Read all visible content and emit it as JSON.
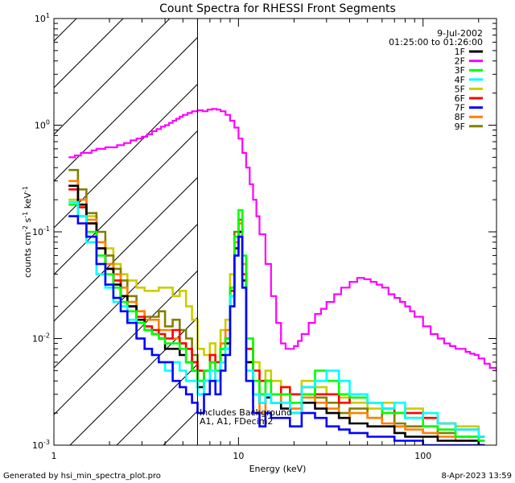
{
  "chart_data": {
    "type": "line",
    "title": "Count Spectra for RHESSI Front Segments",
    "xlabel": "Energy (keV)",
    "ylabel_parts": {
      "a": "counts cm",
      "b": "-2",
      "c": " s",
      "d": "-1",
      "e": " keV",
      "f": "-1"
    },
    "xscale": "log",
    "yscale": "log",
    "xlim": [
      1,
      250
    ],
    "ylim": [
      0.001,
      10
    ],
    "x_ticks": [
      {
        "v": 1,
        "label": "1"
      },
      {
        "v": 10,
        "label": "10"
      },
      {
        "v": 100,
        "label": "100"
      }
    ],
    "y_ticks": [
      {
        "v": 0.001,
        "b": "10",
        "e": "-3"
      },
      {
        "v": 0.01,
        "b": "10",
        "e": "-2"
      },
      {
        "v": 0.1,
        "b": "10",
        "e": "-1"
      },
      {
        "v": 1,
        "b": "10",
        "e": "0"
      },
      {
        "v": 10,
        "b": "10",
        "e": "1"
      }
    ],
    "attenuator_edge_keV": 6,
    "date": "9-Jul-2002",
    "time_range": "01:25:00 to 01:26:00",
    "annotation_line1": "Includes Background",
    "annotation_line2": "A1, A1, FDecim2",
    "legend": [
      {
        "name": "1F",
        "color": "#000000"
      },
      {
        "name": "2F",
        "color": "#ff00ff"
      },
      {
        "name": "3F",
        "color": "#00ff00"
      },
      {
        "name": "4F",
        "color": "#00ffff"
      },
      {
        "name": "5F",
        "color": "#cccc00"
      },
      {
        "name": "6F",
        "color": "#ff0000"
      },
      {
        "name": "7F",
        "color": "#0000ff"
      },
      {
        "name": "8F",
        "color": "#ff8000"
      },
      {
        "name": "9F",
        "color": "#808000"
      }
    ],
    "series": [
      {
        "name": "2F",
        "color": "#ff00ff",
        "x": [
          1.2,
          1.3,
          1.4,
          1.5,
          1.6,
          1.7,
          1.8,
          1.9,
          2.0,
          2.2,
          2.4,
          2.6,
          2.8,
          3.0,
          3.2,
          3.4,
          3.6,
          3.8,
          4.0,
          4.2,
          4.4,
          4.6,
          4.8,
          5.0,
          5.3,
          5.6,
          6.0,
          6.4,
          6.8,
          7.2,
          7.6,
          8.0,
          8.5,
          9.0,
          9.5,
          10,
          10.5,
          11,
          11.5,
          12,
          12.5,
          13,
          14,
          15,
          16,
          17,
          18,
          19,
          20,
          21,
          22,
          24,
          26,
          28,
          30,
          33,
          36,
          40,
          44,
          48,
          52,
          56,
          60,
          65,
          70,
          75,
          80,
          85,
          90,
          100,
          110,
          120,
          130,
          140,
          150,
          160,
          170,
          180,
          190,
          200,
          215,
          230,
          250
        ],
        "y": [
          0.5,
          0.52,
          0.55,
          0.55,
          0.58,
          0.6,
          0.6,
          0.62,
          0.62,
          0.65,
          0.68,
          0.72,
          0.75,
          0.78,
          0.82,
          0.88,
          0.92,
          0.97,
          1.0,
          1.05,
          1.1,
          1.15,
          1.2,
          1.25,
          1.3,
          1.35,
          1.38,
          1.35,
          1.4,
          1.42,
          1.4,
          1.35,
          1.25,
          1.1,
          0.95,
          0.75,
          0.55,
          0.4,
          0.28,
          0.2,
          0.14,
          0.095,
          0.05,
          0.025,
          0.014,
          0.009,
          0.008,
          0.008,
          0.0085,
          0.0095,
          0.011,
          0.014,
          0.017,
          0.019,
          0.022,
          0.026,
          0.03,
          0.034,
          0.037,
          0.036,
          0.034,
          0.032,
          0.03,
          0.026,
          0.024,
          0.022,
          0.02,
          0.018,
          0.016,
          0.013,
          0.011,
          0.01,
          0.009,
          0.0085,
          0.008,
          0.008,
          0.0075,
          0.0072,
          0.007,
          0.0065,
          0.0058,
          0.0053,
          0.005
        ]
      },
      {
        "name": "5F",
        "color": "#cccc00",
        "x": [
          1.2,
          1.35,
          1.5,
          1.7,
          1.9,
          2.1,
          2.3,
          2.5,
          2.8,
          3.1,
          3.4,
          3.7,
          4.0,
          4.4,
          4.8,
          5.2,
          5.6,
          6.0,
          6.5,
          7.0,
          7.5,
          8.0,
          8.5,
          9.0,
          9.5,
          10,
          10.5,
          11,
          12,
          13,
          14,
          15,
          17,
          19,
          22,
          26,
          30,
          35,
          40,
          50,
          60,
          70,
          80,
          100,
          120,
          150,
          200
        ],
        "y": [
          0.2,
          0.17,
          0.14,
          0.08,
          0.07,
          0.05,
          0.04,
          0.035,
          0.03,
          0.028,
          0.028,
          0.03,
          0.03,
          0.025,
          0.028,
          0.02,
          0.015,
          0.008,
          0.007,
          0.009,
          0.006,
          0.012,
          0.015,
          0.04,
          0.09,
          0.12,
          0.05,
          0.01,
          0.006,
          0.004,
          0.005,
          0.004,
          0.0035,
          0.003,
          0.004,
          0.0035,
          0.003,
          0.0028,
          0.0025,
          0.0022,
          0.0025,
          0.002,
          0.0022,
          0.0018,
          0.0016,
          0.0015,
          0.0012
        ]
      },
      {
        "name": "9F",
        "color": "#808000",
        "x": [
          1.2,
          1.35,
          1.5,
          1.7,
          1.9,
          2.1,
          2.3,
          2.5,
          2.8,
          3.1,
          3.4,
          3.7,
          4.0,
          4.4,
          4.8,
          5.2,
          5.6,
          6.0,
          6.5,
          7.0,
          7.5,
          8.0,
          8.5,
          9.0,
          9.5,
          10,
          10.5,
          11,
          12,
          13,
          14,
          15,
          17,
          19,
          22,
          26,
          30,
          35,
          40,
          50,
          60,
          70,
          80,
          100,
          120,
          150,
          200
        ],
        "y": [
          0.38,
          0.25,
          0.15,
          0.1,
          0.06,
          0.045,
          0.035,
          0.025,
          0.018,
          0.016,
          0.016,
          0.018,
          0.013,
          0.015,
          0.012,
          0.01,
          0.007,
          0.004,
          0.005,
          0.006,
          0.004,
          0.008,
          0.01,
          0.03,
          0.1,
          0.13,
          0.04,
          0.008,
          0.004,
          0.003,
          0.004,
          0.003,
          0.003,
          0.0025,
          0.003,
          0.0028,
          0.0025,
          0.002,
          0.0022,
          0.0018,
          0.002,
          0.0016,
          0.0015,
          0.0015,
          0.0013,
          0.0012,
          0.0011
        ]
      },
      {
        "name": "8F",
        "color": "#ff8000",
        "x": [
          1.2,
          1.35,
          1.5,
          1.7,
          1.9,
          2.1,
          2.3,
          2.5,
          2.8,
          3.1,
          3.4,
          3.7,
          4.0,
          4.4,
          4.8,
          5.2,
          5.6,
          6.0,
          6.5,
          7.0,
          7.5,
          8.0,
          8.5,
          9.0,
          9.5,
          10,
          10.5,
          11,
          12,
          13,
          14,
          15,
          17,
          19,
          22,
          26,
          30,
          35,
          40,
          50,
          60,
          70,
          80,
          100,
          120,
          150,
          200
        ],
        "y": [
          0.3,
          0.2,
          0.13,
          0.08,
          0.05,
          0.04,
          0.03,
          0.022,
          0.018,
          0.015,
          0.015,
          0.012,
          0.012,
          0.01,
          0.009,
          0.008,
          0.006,
          0.004,
          0.005,
          0.007,
          0.005,
          0.009,
          0.012,
          0.03,
          0.08,
          0.12,
          0.05,
          0.006,
          0.003,
          0.002,
          0.003,
          0.0025,
          0.003,
          0.0022,
          0.0028,
          0.0025,
          0.0022,
          0.0018,
          0.002,
          0.0018,
          0.0016,
          0.0015,
          0.0014,
          0.0013,
          0.0012,
          0.0011,
          0.001
        ]
      },
      {
        "name": "6F",
        "color": "#ff0000",
        "x": [
          1.2,
          1.35,
          1.5,
          1.7,
          1.9,
          2.1,
          2.3,
          2.5,
          2.8,
          3.1,
          3.4,
          3.7,
          4.0,
          4.4,
          4.8,
          5.2,
          5.6,
          6.0,
          6.5,
          7.0,
          7.5,
          8.0,
          8.5,
          9.0,
          9.5,
          10,
          10.5,
          11,
          12,
          13,
          14,
          15,
          17,
          19,
          22,
          26,
          30,
          35,
          40,
          50,
          60,
          70,
          80,
          100,
          120,
          150,
          200
        ],
        "y": [
          0.25,
          0.17,
          0.12,
          0.07,
          0.045,
          0.035,
          0.025,
          0.02,
          0.016,
          0.013,
          0.012,
          0.011,
          0.01,
          0.012,
          0.009,
          0.008,
          0.006,
          0.005,
          0.004,
          0.007,
          0.006,
          0.008,
          0.01,
          0.028,
          0.07,
          0.1,
          0.04,
          0.008,
          0.005,
          0.004,
          0.004,
          0.003,
          0.0035,
          0.003,
          0.0035,
          0.003,
          0.003,
          0.0025,
          0.0028,
          0.0025,
          0.0022,
          0.002,
          0.002,
          0.0018,
          0.0016,
          0.0014,
          0.0012
        ]
      },
      {
        "name": "1F",
        "color": "#000000",
        "x": [
          1.2,
          1.35,
          1.5,
          1.7,
          1.9,
          2.1,
          2.3,
          2.5,
          2.8,
          3.1,
          3.4,
          3.7,
          4.0,
          4.4,
          4.8,
          5.2,
          5.6,
          6.0,
          6.5,
          7.0,
          7.5,
          8.0,
          8.5,
          9.0,
          9.5,
          10,
          10.5,
          11,
          12,
          13,
          14,
          15,
          17,
          19,
          22,
          26,
          30,
          35,
          40,
          50,
          60,
          70,
          80,
          100,
          120,
          150,
          200
        ],
        "y": [
          0.27,
          0.18,
          0.12,
          0.07,
          0.045,
          0.032,
          0.025,
          0.02,
          0.015,
          0.012,
          0.011,
          0.01,
          0.008,
          0.008,
          0.007,
          0.006,
          0.005,
          0.0035,
          0.004,
          0.006,
          0.004,
          0.007,
          0.009,
          0.025,
          0.07,
          0.1,
          0.035,
          0.006,
          0.003,
          0.0025,
          0.0028,
          0.0025,
          0.0022,
          0.002,
          0.0025,
          0.0022,
          0.002,
          0.0018,
          0.0016,
          0.0015,
          0.0015,
          0.0013,
          0.0012,
          0.0012,
          0.0011,
          0.0011,
          0.001
        ]
      },
      {
        "name": "3F",
        "color": "#00ff00",
        "x": [
          1.2,
          1.35,
          1.5,
          1.7,
          1.9,
          2.1,
          2.3,
          2.5,
          2.8,
          3.1,
          3.4,
          3.7,
          4.0,
          4.4,
          4.8,
          5.2,
          5.6,
          6.0,
          6.5,
          7.0,
          7.5,
          8.0,
          8.5,
          9.0,
          9.5,
          10,
          10.5,
          11,
          12,
          13,
          14,
          15,
          17,
          19,
          22,
          26,
          30,
          35,
          40,
          50,
          60,
          70,
          80,
          100,
          120,
          150,
          200
        ],
        "y": [
          0.18,
          0.14,
          0.1,
          0.06,
          0.04,
          0.03,
          0.022,
          0.018,
          0.014,
          0.012,
          0.011,
          0.01,
          0.009,
          0.009,
          0.008,
          0.006,
          0.005,
          0.004,
          0.005,
          0.006,
          0.005,
          0.008,
          0.01,
          0.03,
          0.09,
          0.16,
          0.06,
          0.01,
          0.004,
          0.003,
          0.004,
          0.003,
          0.003,
          0.0025,
          0.003,
          0.005,
          0.004,
          0.003,
          0.0028,
          0.0025,
          0.002,
          0.002,
          0.0018,
          0.0015,
          0.0014,
          0.0012,
          0.0011
        ]
      },
      {
        "name": "4F",
        "color": "#00ffff",
        "x": [
          1.2,
          1.35,
          1.5,
          1.7,
          1.9,
          2.1,
          2.3,
          2.5,
          2.8,
          3.1,
          3.4,
          3.7,
          4.0,
          4.4,
          4.8,
          5.2,
          5.6,
          6.0,
          6.5,
          7.0,
          7.5,
          8.0,
          8.5,
          9.0,
          9.5,
          10,
          10.5,
          11,
          12,
          13,
          14,
          15,
          17,
          19,
          22,
          26,
          30,
          35,
          40,
          50,
          60,
          70,
          80,
          100,
          120,
          150,
          200
        ],
        "y": [
          0.19,
          0.14,
          0.08,
          0.04,
          0.03,
          0.022,
          0.02,
          0.015,
          0.01,
          0.008,
          0.007,
          0.006,
          0.005,
          0.006,
          0.005,
          0.004,
          0.004,
          0.003,
          0.004,
          0.005,
          0.004,
          0.006,
          0.008,
          0.025,
          0.06,
          0.09,
          0.03,
          0.005,
          0.003,
          0.0025,
          0.003,
          0.0025,
          0.0025,
          0.002,
          0.0035,
          0.004,
          0.005,
          0.004,
          0.003,
          0.0025,
          0.0022,
          0.0025,
          0.0018,
          0.002,
          0.0016,
          0.0014,
          0.0012
        ]
      },
      {
        "name": "7F",
        "color": "#0000ff",
        "x": [
          1.2,
          1.35,
          1.5,
          1.7,
          1.9,
          2.1,
          2.3,
          2.5,
          2.8,
          3.1,
          3.4,
          3.7,
          4.0,
          4.4,
          4.8,
          5.2,
          5.6,
          6.0,
          6.5,
          7.0,
          7.5,
          8.0,
          8.5,
          9.0,
          9.5,
          10,
          10.5,
          11,
          12,
          13,
          14,
          15,
          17,
          19,
          22,
          26,
          30,
          35,
          40,
          50,
          60,
          70,
          80,
          100,
          120,
          150,
          200
        ],
        "y": [
          0.14,
          0.12,
          0.09,
          0.05,
          0.032,
          0.024,
          0.018,
          0.014,
          0.01,
          0.008,
          0.007,
          0.006,
          0.006,
          0.004,
          0.0035,
          0.003,
          0.0025,
          0.002,
          0.003,
          0.004,
          0.003,
          0.005,
          0.007,
          0.02,
          0.06,
          0.09,
          0.03,
          0.004,
          0.002,
          0.0015,
          0.002,
          0.0018,
          0.0018,
          0.0015,
          0.002,
          0.0018,
          0.0015,
          0.0014,
          0.0013,
          0.0012,
          0.0012,
          0.0011,
          0.0011,
          0.001,
          0.001,
          0.001,
          0.001
        ]
      }
    ],
    "footer_left": "Generated by hsi_min_spectra_plot.pro",
    "footer_right": "8-Apr-2023 13:59"
  }
}
